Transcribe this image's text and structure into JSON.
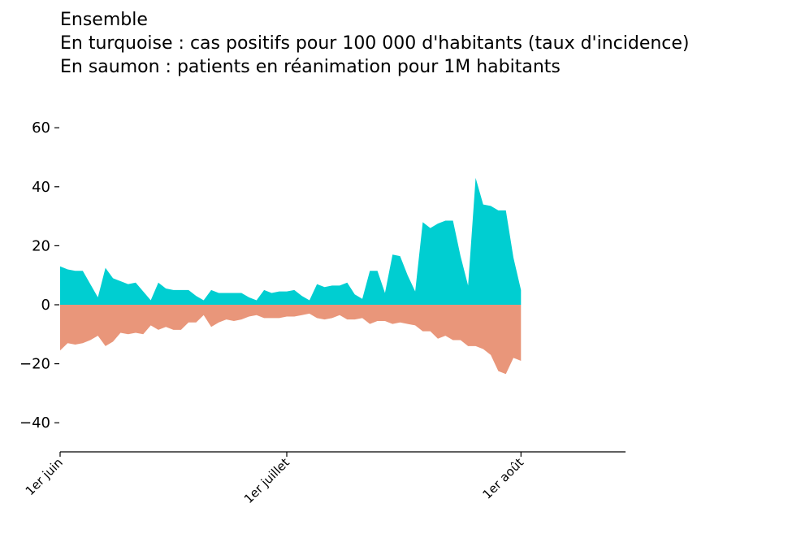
{
  "chart_data": {
    "type": "area",
    "title_lines": [
      "Ensemble",
      "En turquoise : cas positifs pour 100 000 d'habitants (taux d'incidence)",
      "En saumon : patients en réanimation pour 1M habitants"
    ],
    "xlabel": "",
    "ylabel": "",
    "ylim": [
      -50,
      70
    ],
    "yticks": [
      -40,
      -20,
      0,
      20,
      40,
      60
    ],
    "ytick_labels": [
      "−40",
      "−20",
      "0",
      "20",
      "40",
      "60"
    ],
    "xlim_days": [
      0,
      76
    ],
    "xticks": [
      {
        "day": 0,
        "label": "1er juin"
      },
      {
        "day": 30,
        "label": "1er juillet"
      },
      {
        "day": 61,
        "label": "1er août"
      }
    ],
    "grid": false,
    "series": [
      {
        "color": "#00CED1",
        "start_date": "1er juin",
        "values": [
          13,
          12,
          11.5,
          11.5,
          7,
          2.5,
          12.5,
          9,
          8,
          7,
          7.5,
          4.5,
          1.5,
          7.5,
          5.5,
          5,
          5,
          5,
          3,
          1.5,
          5,
          4,
          4,
          4,
          4,
          2.5,
          1.5,
          5,
          4,
          4.5,
          4.5,
          5,
          3,
          1.5,
          7,
          6,
          6.5,
          6.5,
          7.5,
          3.5,
          2,
          11.5,
          11.5,
          4,
          17,
          16.5,
          10,
          4.5,
          28,
          26,
          27.5,
          28.5,
          28.5,
          16.5,
          6.5,
          43,
          34,
          33.5,
          32,
          32,
          16,
          5
        ]
      },
      {
        "color": "#E9967A",
        "start_date": "1er juin",
        "values": [
          -15.5,
          -13,
          -13.5,
          -13,
          -12,
          -10.5,
          -14,
          -12.5,
          -9.5,
          -10,
          -9.5,
          -10,
          -7,
          -8.5,
          -7.5,
          -8.5,
          -8.5,
          -6,
          -6,
          -3.5,
          -7.5,
          -6,
          -5,
          -5.5,
          -5,
          -4,
          -3.5,
          -4.5,
          -4.5,
          -4.5,
          -4,
          -4,
          -3.5,
          -3,
          -4.5,
          -5,
          -4.5,
          -3.5,
          -5,
          -5,
          -4.5,
          -6.5,
          -5.5,
          -5.5,
          -6.5,
          -6,
          -6.5,
          -7,
          -9,
          -9,
          -11.5,
          -10.5,
          -12,
          -12,
          -14,
          -14,
          -15,
          -17,
          -22.5,
          -23.5,
          -18,
          -19
        ]
      }
    ]
  }
}
